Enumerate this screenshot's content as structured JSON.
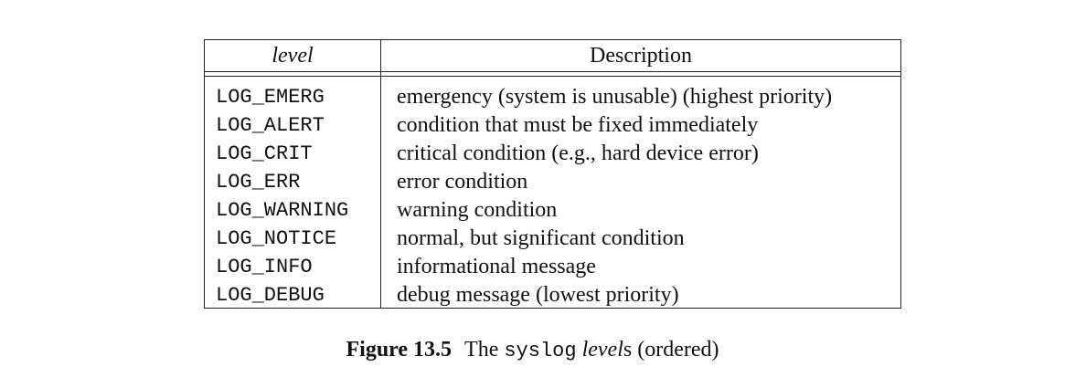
{
  "table": {
    "headers": {
      "level": "level",
      "description": "Description"
    },
    "rows": [
      {
        "level": "LOG_EMERG",
        "description": "emergency (system is unusable) (highest priority)"
      },
      {
        "level": "LOG_ALERT",
        "description": "condition that must be fixed immediately"
      },
      {
        "level": "LOG_CRIT",
        "description": "critical condition (e.g., hard device error)"
      },
      {
        "level": "LOG_ERR",
        "description": "error condition"
      },
      {
        "level": "LOG_WARNING",
        "description": "warning condition"
      },
      {
        "level": "LOG_NOTICE",
        "description": "normal, but significant condition"
      },
      {
        "level": "LOG_INFO",
        "description": "informational message"
      },
      {
        "level": "LOG_DEBUG",
        "description": "debug message (lowest priority)"
      }
    ]
  },
  "caption": {
    "label": "Figure 13.5",
    "text_pre": "The ",
    "code": "syslog",
    "italic": "level",
    "text_post": "s (ordered)"
  }
}
